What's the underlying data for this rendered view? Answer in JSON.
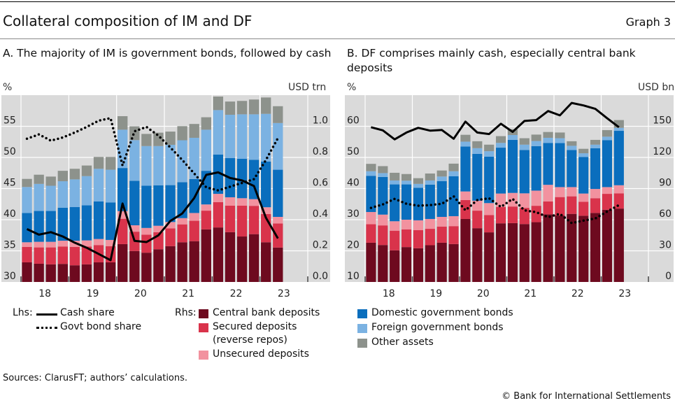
{
  "header": {
    "title": "Collateral composition of IM and DF",
    "graph_label": "Graph 3"
  },
  "colors": {
    "central_bank": "#6e0a1f",
    "secured": "#d9334b",
    "unsecured": "#f2929f",
    "domestic": "#0a6ebd",
    "foreign": "#7bb2e2",
    "other": "#8d928c",
    "plot_bg": "#dadada",
    "grid": "#ffffff",
    "line": "#000000"
  },
  "legend": {
    "lhs_label": "Lhs:",
    "rhs_label": "Rhs:",
    "cash_share": "Cash share",
    "govt_bond_share": "Govt bond share",
    "central_bank": "Central bank deposits",
    "secured": "Secured deposits",
    "secured_note": "(reverse repos)",
    "unsecured": "Unsecured deposits",
    "domestic": "Domestic government bonds",
    "foreign": "Foreign government bonds",
    "other": "Other assets"
  },
  "footer": {
    "sources": "Sources: ClarusFT; authors’ calculations.",
    "copyright": "© Bank for International Settlements"
  },
  "chart_data": [
    {
      "type": "bar",
      "stacked": true,
      "title": "A. The majority of IM is government bonds, followed by cash",
      "lhs_unit": "%",
      "rhs_unit": "USD trn",
      "x_tick_labels": [
        "18",
        "19",
        "20",
        "21",
        "22",
        "23"
      ],
      "x_range": [
        2018,
        2024
      ],
      "frequency": "quarterly",
      "first_period": "2018Q1",
      "lhs_ylim": [
        30,
        60
      ],
      "lhs_ticks": [
        "30",
        "35",
        "40",
        "45",
        "50",
        "55"
      ],
      "rhs_ylim": [
        0,
        1.2
      ],
      "rhs_ticks": [
        "0.0",
        "0.2",
        "0.4",
        "0.6",
        "0.8",
        "1.0"
      ],
      "grid": true,
      "bar_series": [
        {
          "name": "Central bank deposits",
          "key": "central_bank",
          "axis": "rhs",
          "values": [
            0.126,
            0.117,
            0.113,
            0.116,
            0.107,
            0.113,
            0.126,
            0.126,
            0.243,
            0.199,
            0.188,
            0.21,
            0.23,
            0.255,
            0.262,
            0.338,
            0.35,
            0.32,
            0.292,
            0.307,
            0.255,
            0.221
          ]
        },
        {
          "name": "Secured deposits (reverse repos)",
          "key": "secured",
          "axis": "rhs",
          "values": [
            0.099,
            0.105,
            0.109,
            0.112,
            0.118,
            0.115,
            0.111,
            0.104,
            0.163,
            0.124,
            0.116,
            0.11,
            0.114,
            0.115,
            0.131,
            0.12,
            0.163,
            0.17,
            0.198,
            0.182,
            0.181,
            0.155
          ]
        },
        {
          "name": "Unsecured deposits",
          "key": "unsecured",
          "axis": "rhs",
          "values": [
            0.03,
            0.036,
            0.036,
            0.037,
            0.04,
            0.039,
            0.039,
            0.04,
            0.049,
            0.041,
            0.043,
            0.041,
            0.041,
            0.04,
            0.05,
            0.04,
            0.053,
            0.054,
            0.048,
            0.043,
            0.044,
            0.042
          ]
        },
        {
          "name": "Domestic government bonds",
          "key": "domestic",
          "axis": "rhs",
          "values": [
            0.188,
            0.198,
            0.198,
            0.212,
            0.216,
            0.225,
            0.241,
            0.241,
            0.277,
            0.286,
            0.271,
            0.26,
            0.237,
            0.231,
            0.218,
            0.216,
            0.252,
            0.252,
            0.253,
            0.253,
            0.293,
            0.303
          ]
        },
        {
          "name": "Foreign government bonds",
          "key": "foreign",
          "axis": "rhs",
          "values": [
            0.167,
            0.174,
            0.162,
            0.17,
            0.178,
            0.188,
            0.21,
            0.21,
            0.246,
            0.261,
            0.255,
            0.252,
            0.259,
            0.269,
            0.265,
            0.264,
            0.286,
            0.278,
            0.286,
            0.292,
            0.307,
            0.3
          ]
        },
        {
          "name": "Other assets",
          "key": "other",
          "axis": "rhs",
          "values": [
            0.052,
            0.059,
            0.059,
            0.067,
            0.068,
            0.068,
            0.076,
            0.082,
            0.087,
            0.089,
            0.078,
            0.086,
            0.085,
            0.091,
            0.089,
            0.08,
            0.087,
            0.085,
            0.086,
            0.095,
            0.105,
            0.108
          ]
        }
      ],
      "line_series": [
        {
          "name": "Cash share",
          "axis": "lhs",
          "style": "solid",
          "values": [
            38.5,
            37.6,
            38.0,
            37.3,
            36.3,
            35.5,
            34.5,
            33.5,
            42.6,
            36.6,
            36.4,
            37.5,
            39.8,
            41.0,
            43.5,
            47.2,
            47.6,
            46.7,
            46.3,
            45.4,
            40.3,
            37.0
          ]
        },
        {
          "name": "Govt bond share",
          "axis": "lhs",
          "style": "dotted",
          "values": [
            53.0,
            53.7,
            52.7,
            53.2,
            54.0,
            54.9,
            55.9,
            56.3,
            48.7,
            54.2,
            54.9,
            53.5,
            51.6,
            49.6,
            47.4,
            45.2,
            44.7,
            45.3,
            45.9,
            46.5,
            49.6,
            53.1
          ]
        }
      ]
    },
    {
      "type": "bar",
      "stacked": true,
      "title": "B. DF comprises mainly cash, especially central bank deposits",
      "lhs_unit": "%",
      "rhs_unit": "USD bn",
      "x_tick_labels": [
        "18",
        "19",
        "20",
        "21",
        "22",
        "23"
      ],
      "x_range": [
        2018,
        2024
      ],
      "frequency": "quarterly",
      "first_period": "2018Q1",
      "lhs_ylim": [
        10,
        70
      ],
      "lhs_ticks": [
        "10",
        "20",
        "30",
        "40",
        "50",
        "60"
      ],
      "rhs_ylim": [
        0,
        180
      ],
      "rhs_ticks": [
        "0",
        "30",
        "60",
        "90",
        "120",
        "150"
      ],
      "grid": true,
      "bar_series": [
        {
          "name": "Central bank deposits",
          "key": "central_bank",
          "axis": "rhs",
          "values": [
            37.8,
            35.6,
            30.5,
            33.6,
            32.5,
            35.4,
            37.8,
            36.5,
            60.7,
            51.8,
            47.8,
            56.5,
            56.7,
            55.8,
            57.6,
            65.2,
            64.0,
            65.6,
            63.8,
            66.5,
            69.6,
            70.7
          ]
        },
        {
          "name": "Secured deposits (reverse repos)",
          "key": "secured",
          "axis": "rhs",
          "values": [
            17.8,
            18.9,
            18.9,
            17.1,
            17.5,
            15.8,
            15.6,
            17.3,
            18.2,
            16.9,
            16.7,
            15.8,
            16.0,
            15.6,
            15.8,
            12.4,
            17.8,
            16.9,
            13.4,
            14.2,
            15.3,
            14.7
          ]
        },
        {
          "name": "Unsecured deposits",
          "key": "unsecured",
          "axis": "rhs",
          "values": [
            11.8,
            10.4,
            9.1,
            9.3,
            9.4,
            9.5,
            9.3,
            9.6,
            8.3,
            9.6,
            11.5,
            12.9,
            13.1,
            14.0,
            14.6,
            16.0,
            9.6,
            8.9,
            8.0,
            8.9,
            6.5,
            7.8
          ]
        },
        {
          "name": "Domestic government bonds",
          "key": "domestic",
          "axis": "rhs",
          "values": [
            34.9,
            36.3,
            35.5,
            34.0,
            31.3,
            33.1,
            34.5,
            38.4,
            43.3,
            45.1,
            44.7,
            44.2,
            51.1,
            41.8,
            42.9,
            40.4,
            42.4,
            35.8,
            35.3,
            39.3,
            45.3,
            52.4
          ]
        },
        {
          "name": "Foreign government bonds",
          "key": "foreign",
          "axis": "rhs",
          "values": [
            4.4,
            3.7,
            3.8,
            3.6,
            3.8,
            4.0,
            4.4,
            4.9,
            4.7,
            5.5,
            5.3,
            4.6,
            4.7,
            5.1,
            4.9,
            4.9,
            4.7,
            4.0,
            3.5,
            3.4,
            3.3,
            2.9
          ]
        },
        {
          "name": "Other assets",
          "key": "other",
          "axis": "rhs",
          "values": [
            7.1,
            6.7,
            7.4,
            6.4,
            5.5,
            6.7,
            5.8,
            7.3,
            6.6,
            6.7,
            6.3,
            6.5,
            5.6,
            6.2,
            6.2,
            5.6,
            5.5,
            4.4,
            4.3,
            4.6,
            6.3,
            7.5
          ]
        }
      ],
      "line_series": [
        {
          "name": "Cash share",
          "axis": "lhs",
          "style": "solid",
          "values": [
            59.7,
            58.7,
            55.8,
            58.0,
            59.5,
            58.6,
            58.8,
            56.0,
            61.5,
            58.0,
            57.5,
            60.8,
            58.2,
            61.7,
            62.0,
            64.9,
            63.5,
            67.5,
            66.7,
            65.6,
            62.6,
            59.7
          ]
        },
        {
          "name": "Govt bond share",
          "axis": "lhs",
          "style": "dotted",
          "values": [
            33.8,
            34.9,
            36.7,
            35.1,
            34.5,
            34.7,
            35.1,
            37.5,
            33.0,
            36.3,
            36.9,
            34.1,
            36.7,
            33.0,
            32.4,
            30.8,
            31.9,
            28.9,
            29.7,
            30.4,
            32.6,
            34.7
          ]
        }
      ]
    }
  ]
}
